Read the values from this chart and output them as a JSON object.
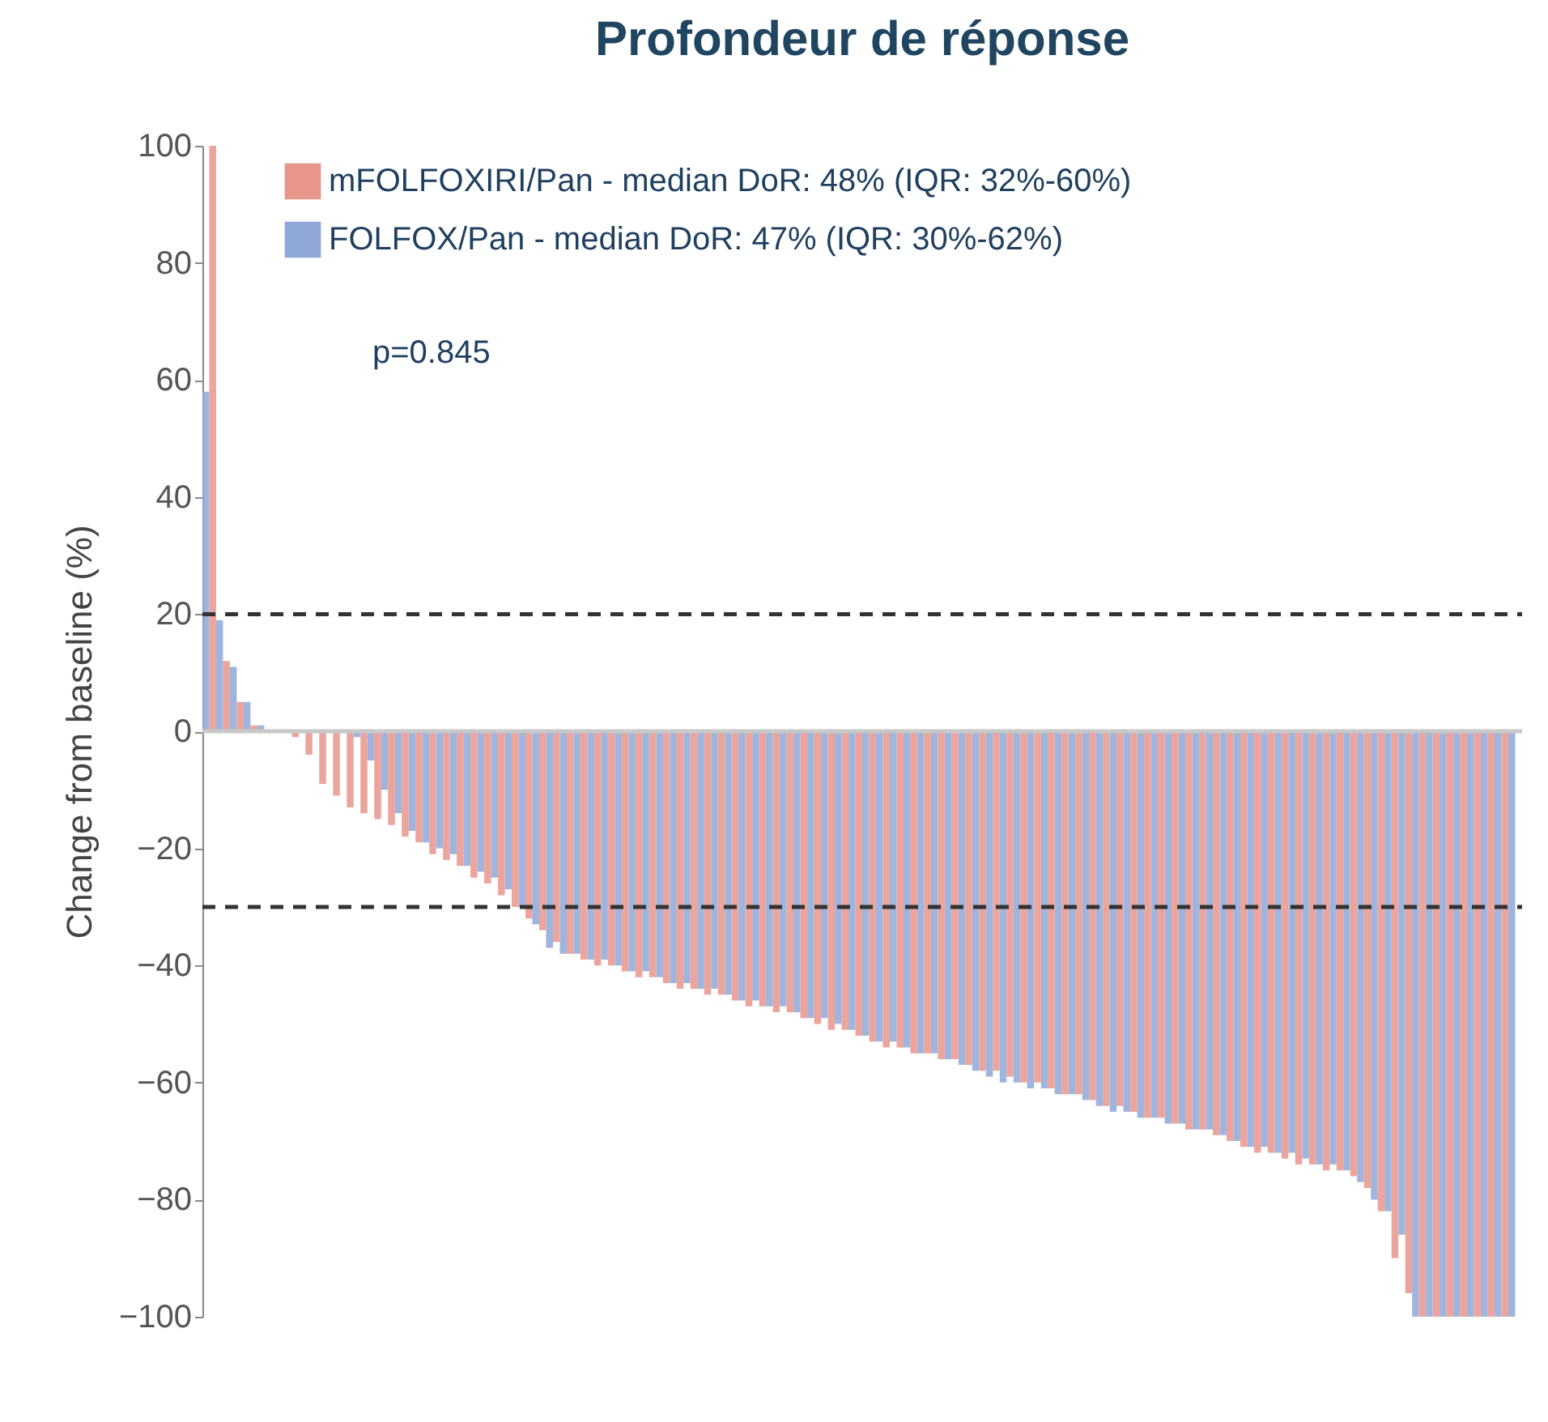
{
  "chart_data": {
    "type": "bar",
    "title": "Profondeur de réponse",
    "ylabel": "Change from baseline (%)",
    "categories": [
      null,
      null,
      null,
      null,
      null,
      null,
      null,
      null,
      null,
      null,
      null,
      null,
      null,
      null,
      null,
      null,
      null,
      null,
      null,
      null,
      null,
      null,
      null,
      null,
      null,
      null,
      null,
      null,
      null,
      null,
      null,
      null,
      null,
      null,
      null,
      null,
      null,
      null,
      null,
      null,
      null,
      null,
      null,
      null,
      null,
      null,
      null,
      null,
      null,
      null,
      null,
      null,
      null,
      null,
      null,
      null,
      null,
      null,
      null,
      null,
      null,
      null,
      null,
      null,
      null,
      null,
      null,
      null,
      null,
      null,
      null,
      null,
      null,
      null,
      null,
      null,
      null,
      null,
      null,
      null,
      null,
      null,
      null,
      null,
      null,
      null,
      null,
      null,
      null,
      null,
      null,
      null,
      null,
      null,
      null,
      null
    ],
    "series": [
      {
        "name": "FOLFOX/Pan - median DoR: 47% (IQR: 30%-62%)",
        "color": "#8fa8d8",
        "values": [
          58,
          19,
          11,
          5,
          1,
          0,
          0,
          0,
          0,
          0,
          0,
          -1,
          -5,
          -10,
          -14,
          -17,
          -19,
          -20,
          -21,
          -23,
          -24,
          -25,
          -27,
          -30,
          -33,
          -37,
          -38,
          -38,
          -39,
          -39,
          -40,
          -41,
          -41,
          -42,
          -43,
          -43,
          -44,
          -44,
          -45,
          -46,
          -46,
          -47,
          -47,
          -48,
          -49,
          -49,
          -50,
          -51,
          -52,
          -53,
          -53,
          -54,
          -55,
          -55,
          -56,
          -57,
          -58,
          -59,
          -60,
          -60,
          -61,
          -61,
          -62,
          -62,
          -63,
          -64,
          -65,
          -65,
          -66,
          -66,
          -67,
          -67,
          -68,
          -68,
          -69,
          -70,
          -71,
          -71,
          -72,
          -72,
          -73,
          -74,
          -74,
          -75,
          -77,
          -80,
          -82,
          -86,
          -100,
          -100,
          -100,
          -100,
          -100,
          -100,
          -100,
          -100
        ]
      },
      {
        "name": "mFOLFOXIRI/Pan - median DoR: 48% (IQR: 32%-60%)",
        "color": "#e8958c",
        "values": [
          100,
          12,
          5,
          1,
          0,
          0,
          -1,
          -4,
          -9,
          -11,
          -13,
          -14,
          -15,
          -16,
          -18,
          -19,
          -21,
          -22,
          -23,
          -25,
          -26,
          -28,
          -30,
          -32,
          -34,
          -36,
          -38,
          -39,
          -40,
          -40,
          -41,
          -42,
          -42,
          -43,
          -44,
          -44,
          -45,
          -45,
          -46,
          -47,
          -47,
          -48,
          -48,
          -49,
          -50,
          -51,
          -51,
          -52,
          -53,
          -54,
          -54,
          -55,
          -55,
          -56,
          -56,
          -57,
          -58,
          -58,
          -59,
          -60,
          -60,
          -61,
          -62,
          -62,
          -63,
          -64,
          -64,
          -65,
          -66,
          -66,
          -67,
          -68,
          -68,
          -69,
          -70,
          -71,
          -72,
          -72,
          -73,
          -74,
          -74,
          -75,
          -75,
          -76,
          -78,
          -82,
          -90,
          -96,
          -100,
          -100,
          -100,
          -100,
          -100,
          -100,
          -100,
          null
        ]
      }
    ],
    "ylim": [
      -100,
      100
    ],
    "yticks": [
      -100,
      -80,
      -60,
      -40,
      -20,
      0,
      20,
      40,
      60,
      80,
      100
    ],
    "ref_lines": [
      {
        "axis": "y",
        "value": 0,
        "color": "#c8c8c8",
        "line_style": "solid"
      },
      {
        "axis": "y",
        "value": 20,
        "color": "#333333",
        "line_style": "dashed"
      },
      {
        "axis": "y",
        "value": -30,
        "color": "#333333",
        "line_style": "dashed"
      }
    ],
    "legend": "top",
    "grid": false,
    "annotations": [
      "p=0.845"
    ]
  }
}
